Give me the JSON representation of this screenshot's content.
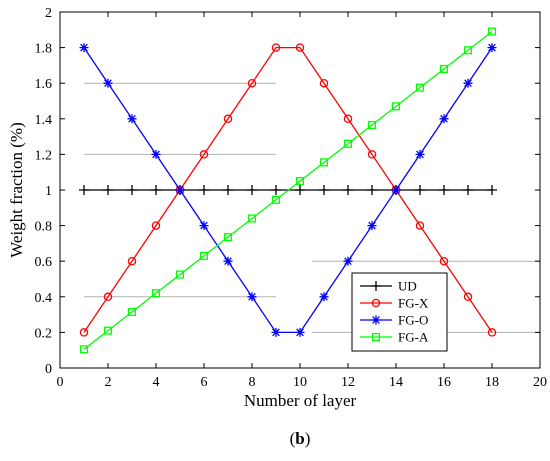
{
  "chart_data": {
    "type": "line",
    "title": "",
    "xlabel": "Number of layer",
    "ylabel": "Weight fraction (%)",
    "xlim": [
      0,
      20
    ],
    "ylim": [
      0,
      2
    ],
    "xticks": [
      "0",
      "2",
      "4",
      "6",
      "8",
      "10",
      "12",
      "14",
      "16",
      "18",
      "20"
    ],
    "yticks": [
      "0",
      "0.2",
      "0.4",
      "0.6",
      "0.8",
      "1",
      "1.2",
      "1.4",
      "1.6",
      "1.8",
      "2"
    ],
    "grid": false,
    "legend_position": "bottom-right",
    "x": [
      1,
      2,
      3,
      4,
      5,
      6,
      7,
      8,
      9,
      10,
      11,
      12,
      13,
      14,
      15,
      16,
      17,
      18
    ],
    "series": [
      {
        "name": "UD",
        "color": "#000000",
        "marker": "plus",
        "values": [
          1,
          1,
          1,
          1,
          1,
          1,
          1,
          1,
          1,
          1,
          1,
          1,
          1,
          1,
          1,
          1,
          1,
          1
        ]
      },
      {
        "name": "FG-X",
        "color": "#ff0000",
        "marker": "circle",
        "values": [
          0.2,
          0.4,
          0.6,
          0.8,
          1.0,
          1.2,
          1.4,
          1.6,
          1.8,
          1.8,
          1.6,
          1.4,
          1.2,
          1.0,
          0.8,
          0.6,
          0.4,
          0.2
        ]
      },
      {
        "name": "FG-O",
        "color": "#0000ff",
        "marker": "asterisk",
        "values": [
          1.8,
          1.6,
          1.4,
          1.2,
          1.0,
          0.8,
          0.6,
          0.4,
          0.2,
          0.2,
          0.4,
          0.6,
          0.8,
          1.0,
          1.2,
          1.4,
          1.6,
          1.8
        ]
      },
      {
        "name": "FG-A",
        "color": "#00ff00",
        "marker": "square",
        "values": [
          0.105,
          0.21,
          0.315,
          0.42,
          0.525,
          0.63,
          0.735,
          0.84,
          0.945,
          1.05,
          1.155,
          1.26,
          1.365,
          1.47,
          1.575,
          1.68,
          1.785,
          1.89
        ]
      }
    ],
    "panel_label": "(b)"
  }
}
